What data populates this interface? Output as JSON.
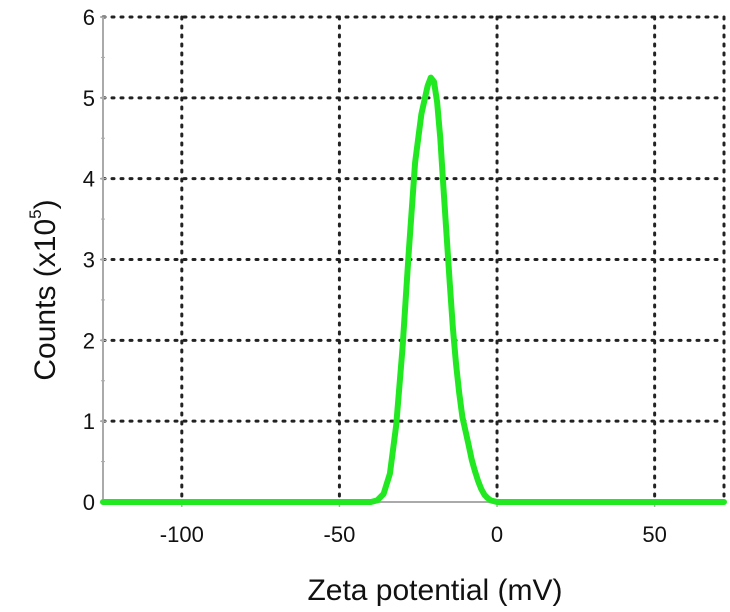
{
  "chart_data": {
    "type": "line",
    "title": "",
    "xlabel": "Zeta potential (mV)",
    "ylabel_base": "Counts (x10",
    "ylabel_exp": "5",
    "ylabel_close": ")",
    "xlim": [
      -125,
      72
    ],
    "ylim": [
      0,
      6
    ],
    "xticks": [
      -100,
      -50,
      0,
      50
    ],
    "xtick_labels": [
      "-100",
      "-50",
      "0",
      "50"
    ],
    "yticks": [
      0,
      1,
      2,
      3,
      4,
      5,
      6
    ],
    "ytick_labels": [
      "0",
      "1",
      "2",
      "3",
      "4",
      "5",
      "6"
    ],
    "grid": true,
    "grid_style": "dotted",
    "series": [
      {
        "color": "#22e822",
        "x": [
          -125,
          -60,
          -40,
          -38,
          -36,
          -34,
          -32,
          -30,
          -28,
          -26,
          -24,
          -22,
          -21,
          -20,
          -19,
          -18,
          -17,
          -16,
          -15,
          -14,
          -13,
          -12,
          -11,
          -10,
          -9,
          -8,
          -7,
          -6,
          -5,
          -4,
          -3,
          -2,
          0,
          5,
          72
        ],
        "y": [
          0,
          0,
          0,
          0.02,
          0.1,
          0.35,
          0.95,
          1.9,
          3.1,
          4.2,
          4.8,
          5.15,
          5.25,
          5.2,
          4.95,
          4.5,
          3.9,
          3.3,
          2.7,
          2.15,
          1.7,
          1.35,
          1.05,
          0.88,
          0.7,
          0.52,
          0.38,
          0.26,
          0.16,
          0.09,
          0.05,
          0.02,
          0,
          0,
          0
        ]
      }
    ],
    "axis_color": "#aaaaaa",
    "grid_color": "#222222"
  }
}
